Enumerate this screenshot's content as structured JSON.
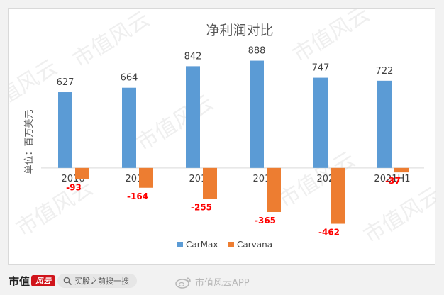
{
  "colors": {
    "carmax": "#5b9bd5",
    "carvana": "#ed7d31",
    "negative_label": "#ff0000",
    "positive_label": "#404040",
    "watermark": "#d0d0d0"
  },
  "watermark_text": "市值风云",
  "unit_label": "单位：百万美元",
  "chart_data": {
    "type": "bar",
    "title": "净利润对比",
    "categories": [
      "2016",
      "2017",
      "2018",
      "2019",
      "2020",
      "2021H1"
    ],
    "series": [
      {
        "name": "CarMax",
        "values": [
          627,
          664,
          842,
          888,
          747,
          722
        ]
      },
      {
        "name": "Carvana",
        "values": [
          -93,
          -164,
          -255,
          -365,
          -462,
          -37
        ]
      }
    ],
    "ylim": [
      -500,
      950
    ],
    "grid": false,
    "legend": "bottom"
  },
  "footer": {
    "brand_name": "市值",
    "brand_seal_text": "风云",
    "search_placeholder": "买股之前搜一搜",
    "weibo_credit": "市值风云APP"
  }
}
